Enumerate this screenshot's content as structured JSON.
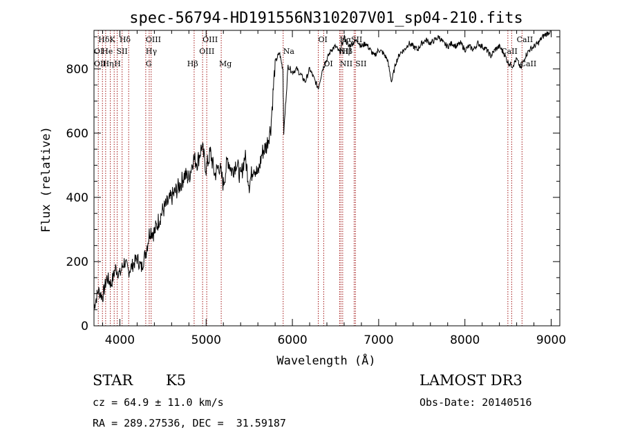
{
  "chart_data": {
    "type": "line",
    "title": "spec-56794-HD191556N310207V01_sp04-210.fits",
    "xlabel": "Wavelength (Å)",
    "ylabel": "Flux (relative)",
    "xlim": [
      3700,
      9100
    ],
    "ylim": [
      0,
      920
    ],
    "xticks": [
      4000,
      5000,
      6000,
      7000,
      8000,
      9000
    ],
    "yticks": [
      0,
      200,
      400,
      600,
      800
    ],
    "series": [
      {
        "x": [
          3700,
          3750,
          3800,
          3850,
          3900,
          3950,
          4000,
          4050,
          4100,
          4150,
          4200,
          4250,
          4300,
          4350,
          4400,
          4450,
          4500,
          4550,
          4600,
          4650,
          4700,
          4750,
          4800,
          4850,
          4900,
          4950,
          5000,
          5050,
          5100,
          5150,
          5200,
          5250,
          5300,
          5350,
          5400,
          5450,
          5500,
          5550,
          5600,
          5650,
          5700,
          5750,
          5800,
          5850,
          5890,
          5900,
          5950,
          6000,
          6050,
          6100,
          6150,
          6200,
          6250,
          6300,
          6350,
          6400,
          6450,
          6500,
          6550,
          6600,
          6650,
          6700,
          6750,
          6800,
          6850,
          6900,
          6950,
          7000,
          7050,
          7100,
          7150,
          7200,
          7250,
          7300,
          7350,
          7400,
          7450,
          7500,
          7550,
          7600,
          7650,
          7700,
          7750,
          7800,
          7850,
          7900,
          7950,
          8000,
          8050,
          8100,
          8150,
          8200,
          8250,
          8300,
          8350,
          8400,
          8450,
          8500,
          8550,
          8600,
          8650,
          8700,
          8750,
          8800,
          8850,
          8900,
          8950,
          9000
        ],
        "values": [
          60,
          110,
          90,
          150,
          130,
          180,
          160,
          200,
          170,
          190,
          210,
          180,
          230,
          300,
          290,
          330,
          360,
          380,
          400,
          420,
          440,
          470,
          460,
          520,
          510,
          560,
          490,
          540,
          470,
          500,
          440,
          520,
          480,
          510,
          460,
          530,
          440,
          500,
          470,
          540,
          560,
          620,
          820,
          850,
          800,
          600,
          810,
          790,
          800,
          780,
          760,
          800,
          770,
          740,
          800,
          830,
          860,
          870,
          850,
          900,
          870,
          880,
          890,
          870,
          880,
          860,
          840,
          860,
          850,
          830,
          760,
          820,
          850,
          860,
          880,
          870,
          860,
          880,
          890,
          880,
          890,
          900,
          880,
          870,
          880,
          870,
          880,
          860,
          870,
          860,
          880,
          870,
          860,
          840,
          860,
          870,
          850,
          820,
          810,
          830,
          800,
          840,
          860,
          870,
          880,
          900,
          910,
          920
        ]
      }
    ],
    "lines": [
      {
        "x": 3750,
        "color": "#a01010"
      },
      {
        "x": 3798,
        "color": "#a01010"
      },
      {
        "x": 3835,
        "color": "#a01010"
      },
      {
        "x": 3889,
        "color": "#a01010"
      },
      {
        "x": 3934,
        "color": "#a01010"
      },
      {
        "x": 3969,
        "color": "#a01010"
      },
      {
        "x": 4026,
        "color": "#a01010"
      },
      {
        "x": 4102,
        "color": "#a01010"
      },
      {
        "x": 4300,
        "color": "#a01010"
      },
      {
        "x": 4340,
        "color": "#a01010"
      },
      {
        "x": 4363,
        "color": "#a01010"
      },
      {
        "x": 4861,
        "color": "#a01010"
      },
      {
        "x": 4959,
        "color": "#a01010"
      },
      {
        "x": 5007,
        "color": "#a01010"
      },
      {
        "x": 5175,
        "color": "#a01010"
      },
      {
        "x": 5893,
        "color": "#a01010"
      },
      {
        "x": 6300,
        "color": "#a01010"
      },
      {
        "x": 6363,
        "color": "#a01010"
      },
      {
        "x": 6548,
        "color": "#a01010"
      },
      {
        "x": 6563,
        "color": "#a01010"
      },
      {
        "x": 6583,
        "color": "#a01010"
      },
      {
        "x": 6716,
        "color": "#a01010"
      },
      {
        "x": 6731,
        "color": "#a01010"
      },
      {
        "x": 8498,
        "color": "#a01010"
      },
      {
        "x": 8542,
        "color": "#a01010"
      },
      {
        "x": 8662,
        "color": "#a01010"
      }
    ],
    "line_labels": [
      {
        "text": "Hδ",
        "x": 3750,
        "row": 0
      },
      {
        "text": "K",
        "x": 3880,
        "row": 0
      },
      {
        "text": "Hδ",
        "x": 3995,
        "row": 0
      },
      {
        "text": "OIII",
        "x": 4300,
        "row": 0
      },
      {
        "text": "OIII",
        "x": 4959,
        "row": 0
      },
      {
        "text": "OI",
        "x": 6300,
        "row": 0
      },
      {
        "text": "Hα",
        "x": 6548,
        "row": 0
      },
      {
        "text": "SII",
        "x": 6680,
        "row": 0
      },
      {
        "text": "CaII",
        "x": 8600,
        "row": 0
      },
      {
        "text": "OI",
        "x": 3700,
        "row": 1
      },
      {
        "text": "He",
        "x": 3790,
        "row": 1
      },
      {
        "text": "SII",
        "x": 3960,
        "row": 1
      },
      {
        "text": "Hγ",
        "x": 4300,
        "row": 1
      },
      {
        "text": "OIII",
        "x": 4920,
        "row": 1
      },
      {
        "text": "Na",
        "x": 5893,
        "row": 1
      },
      {
        "text": "NII",
        "x": 6540,
        "row": 1
      },
      {
        "text": "Hβ",
        "x": 6570,
        "row": 1
      },
      {
        "text": "CaII",
        "x": 8420,
        "row": 1
      },
      {
        "text": "OII",
        "x": 3700,
        "row": 2
      },
      {
        "text": "Hη",
        "x": 3800,
        "row": 2
      },
      {
        "text": "H",
        "x": 3934,
        "row": 2
      },
      {
        "text": "G",
        "x": 4300,
        "row": 2
      },
      {
        "text": "Hβ",
        "x": 4780,
        "row": 2
      },
      {
        "text": "Mg",
        "x": 5150,
        "row": 2
      },
      {
        "text": "OI",
        "x": 6363,
        "row": 2
      },
      {
        "text": "NII",
        "x": 6550,
        "row": 2
      },
      {
        "text": "SII",
        "x": 6730,
        "row": 2
      },
      {
        "text": "CaII",
        "x": 8640,
        "row": 2
      }
    ],
    "grid": false
  },
  "info": {
    "class_label": "STAR",
    "subclass": "K5",
    "survey": "LAMOST DR3",
    "cz": "cz = 64.9 ± 11.0 km/s",
    "obs_date": "Obs-Date: 20140516",
    "coords": "RA = 289.27536, DEC =  31.59187"
  },
  "colors": {
    "spectrum": "#000000",
    "line_marker": "#a01010"
  }
}
